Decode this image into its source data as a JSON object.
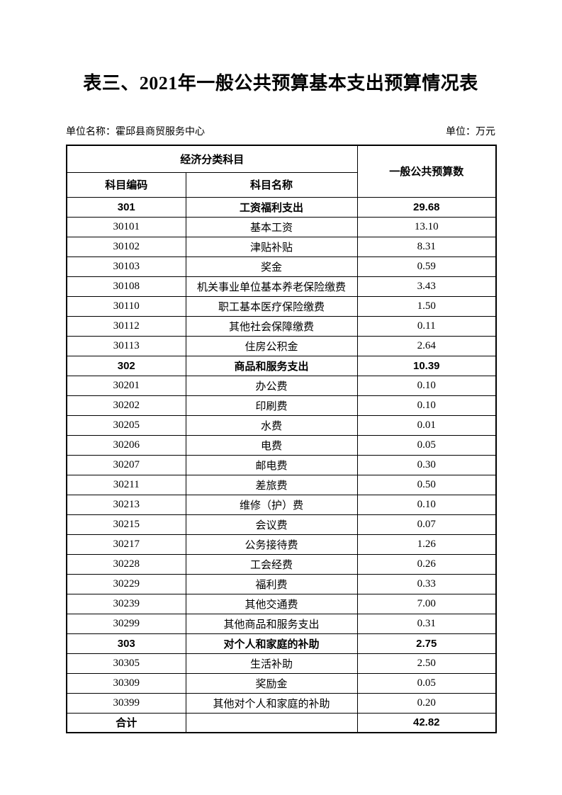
{
  "page": {
    "title": "表三、2021年一般公共预算基本支出预算情况表",
    "unit_name": "单位名称：霍邱县商贸服务中心",
    "unit_measure": "单位：万元"
  },
  "table": {
    "header": {
      "group_label": "经济分类科目",
      "code_label": "科目编码",
      "name_label": "科目名称",
      "value_label": "一般公共预算数"
    },
    "rows": [
      {
        "code": "301",
        "name": "工资福利支出",
        "value": "29.68",
        "bold": true
      },
      {
        "code": "30101",
        "name": "基本工资",
        "value": "13.10",
        "bold": false
      },
      {
        "code": "30102",
        "name": "津贴补贴",
        "value": "8.31",
        "bold": false
      },
      {
        "code": "30103",
        "name": "奖金",
        "value": "0.59",
        "bold": false
      },
      {
        "code": "30108",
        "name": "机关事业单位基本养老保险缴费",
        "value": "3.43",
        "bold": false
      },
      {
        "code": "30110",
        "name": "职工基本医疗保险缴费",
        "value": "1.50",
        "bold": false
      },
      {
        "code": "30112",
        "name": "其他社会保障缴费",
        "value": "0.11",
        "bold": false
      },
      {
        "code": "30113",
        "name": "住房公积金",
        "value": "2.64",
        "bold": false
      },
      {
        "code": "302",
        "name": "商品和服务支出",
        "value": "10.39",
        "bold": true
      },
      {
        "code": "30201",
        "name": "办公费",
        "value": "0.10",
        "bold": false
      },
      {
        "code": "30202",
        "name": "印刷费",
        "value": "0.10",
        "bold": false
      },
      {
        "code": "30205",
        "name": "水费",
        "value": "0.01",
        "bold": false
      },
      {
        "code": "30206",
        "name": "电费",
        "value": "0.05",
        "bold": false
      },
      {
        "code": "30207",
        "name": "邮电费",
        "value": "0.30",
        "bold": false
      },
      {
        "code": "30211",
        "name": "差旅费",
        "value": "0.50",
        "bold": false
      },
      {
        "code": "30213",
        "name": "维修（护）费",
        "value": "0.10",
        "bold": false
      },
      {
        "code": "30215",
        "name": "会议费",
        "value": "0.07",
        "bold": false
      },
      {
        "code": "30217",
        "name": "公务接待费",
        "value": "1.26",
        "bold": false
      },
      {
        "code": "30228",
        "name": "工会经费",
        "value": "0.26",
        "bold": false
      },
      {
        "code": "30229",
        "name": "福利费",
        "value": "0.33",
        "bold": false
      },
      {
        "code": "30239",
        "name": "其他交通费",
        "value": "7.00",
        "bold": false
      },
      {
        "code": "30299",
        "name": "其他商品和服务支出",
        "value": "0.31",
        "bold": false
      },
      {
        "code": "303",
        "name": "对个人和家庭的补助",
        "value": "2.75",
        "bold": true
      },
      {
        "code": "30305",
        "name": "生活补助",
        "value": "2.50",
        "bold": false
      },
      {
        "code": "30309",
        "name": "奖励金",
        "value": "0.05",
        "bold": false
      },
      {
        "code": "30399",
        "name": "其他对个人和家庭的补助",
        "value": "0.20",
        "bold": false
      },
      {
        "code": "合计",
        "name": "",
        "value": "42.82",
        "bold": true
      }
    ]
  }
}
